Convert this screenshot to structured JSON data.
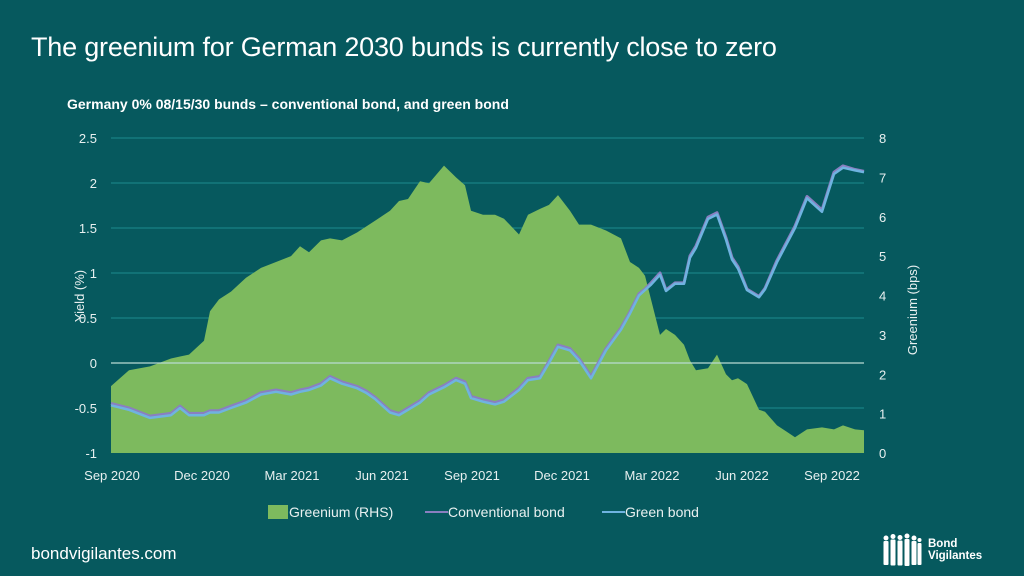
{
  "page": {
    "title": "The greenium for German 2030 bunds is currently close to zero",
    "footer_url": "bondvigilantes.com",
    "logo_line1": "Bond",
    "logo_line2": "Vigilantes"
  },
  "colors": {
    "background": "#06595E",
    "gridline": "#1C8A8E",
    "zero_line": "#B9DCD3",
    "greenium": "#7DBA5E",
    "conventional": "#8A7FC0",
    "green_bond": "#6FB3E0",
    "text": "#E8F0F0"
  },
  "chart_data": {
    "type": "line",
    "title": "Germany 0% 08/15/30 bunds – conventional bond, and green bond",
    "xlabel": "",
    "ylabel": "Yield (%)",
    "y2label": "Greenium (bps)",
    "ylim": [
      -1,
      2.5
    ],
    "y2lim": [
      0,
      8
    ],
    "yticks": [
      "-1",
      "-0.5",
      "0",
      "0.5",
      "1",
      "1.5",
      "2",
      "2.5"
    ],
    "y2ticks": [
      "0",
      "1",
      "2",
      "3",
      "4",
      "5",
      "6",
      "7",
      "8"
    ],
    "xticks": [
      "Sep 2020",
      "Dec 2020",
      "Mar 2021",
      "Jun 2021",
      "Sep 2021",
      "Dec 2021",
      "Mar 2022",
      "Jun 2022",
      "Sep 2022"
    ],
    "x_range_months": [
      0,
      25.1
    ],
    "grid": true,
    "legend": "bottom",
    "legend_entries": [
      "Greenium (RHS)",
      "Conventional bond",
      "Green bond"
    ],
    "x_months_from_sep_2020": [
      0,
      0.6,
      1.3,
      2.0,
      2.3,
      2.6,
      3.1,
      3.3,
      3.6,
      4.0,
      4.5,
      5.0,
      5.5,
      6.0,
      6.3,
      6.6,
      7.0,
      7.3,
      7.7,
      8.2,
      8.5,
      8.8,
      9.3,
      9.6,
      9.9,
      10.3,
      10.6,
      11.1,
      11.5,
      11.8,
      12.0,
      12.4,
      12.8,
      13.1,
      13.6,
      13.9,
      14.3,
      14.6,
      14.9,
      15.3,
      15.6,
      16.0,
      16.5,
      17.0,
      17.3,
      17.6,
      17.8,
      18.0,
      18.3,
      18.5,
      18.8,
      19.1,
      19.3,
      19.5,
      19.9,
      20.2,
      20.5,
      20.7,
      20.9,
      21.2,
      21.6,
      21.8,
      22.2,
      22.5,
      22.8,
      23.2,
      23.7,
      24.1,
      24.4,
      24.8,
      25.1
    ],
    "series": [
      {
        "name": "Greenium (RHS)",
        "axis": "right",
        "style": "area",
        "values": [
          1.7,
          2.1,
          2.2,
          2.4,
          2.45,
          2.5,
          2.85,
          3.6,
          3.9,
          4.1,
          4.45,
          4.7,
          4.85,
          5.0,
          5.25,
          5.1,
          5.4,
          5.45,
          5.4,
          5.6,
          5.75,
          5.9,
          6.15,
          6.4,
          6.45,
          6.9,
          6.85,
          7.3,
          7.0,
          6.8,
          6.15,
          6.05,
          6.05,
          5.95,
          5.55,
          6.05,
          6.2,
          6.3,
          6.55,
          6.15,
          5.8,
          5.8,
          5.65,
          5.45,
          4.85,
          4.7,
          4.5,
          3.9,
          3.0,
          3.15,
          3.0,
          2.75,
          2.35,
          2.1,
          2.15,
          2.5,
          2.0,
          1.85,
          1.9,
          1.75,
          1.1,
          1.05,
          0.7,
          0.55,
          0.4,
          0.6,
          0.65,
          0.6,
          0.7,
          0.6,
          0.58
        ]
      },
      {
        "name": "Conventional bond",
        "axis": "left",
        "style": "line",
        "values": [
          -0.45,
          -0.5,
          -0.59,
          -0.56,
          -0.48,
          -0.56,
          -0.56,
          -0.53,
          -0.53,
          -0.48,
          -0.42,
          -0.33,
          -0.3,
          -0.33,
          -0.3,
          -0.28,
          -0.23,
          -0.15,
          -0.21,
          -0.26,
          -0.31,
          -0.38,
          -0.53,
          -0.56,
          -0.5,
          -0.42,
          -0.33,
          -0.25,
          -0.17,
          -0.21,
          -0.37,
          -0.41,
          -0.44,
          -0.41,
          -0.28,
          -0.17,
          -0.15,
          0.02,
          0.2,
          0.16,
          0.05,
          -0.15,
          0.16,
          0.39,
          0.57,
          0.77,
          0.82,
          0.89,
          1.0,
          0.81,
          0.89,
          0.89,
          1.19,
          1.3,
          1.62,
          1.67,
          1.39,
          1.17,
          1.07,
          0.82,
          0.74,
          0.83,
          1.14,
          1.33,
          1.52,
          1.85,
          1.7,
          2.12,
          2.19,
          2.15,
          2.13
        ]
      },
      {
        "name": "Green bond",
        "axis": "left",
        "style": "line",
        "values": [
          -0.47,
          -0.52,
          -0.61,
          -0.58,
          -0.5,
          -0.58,
          -0.58,
          -0.55,
          -0.55,
          -0.5,
          -0.44,
          -0.35,
          -0.32,
          -0.35,
          -0.32,
          -0.3,
          -0.25,
          -0.17,
          -0.23,
          -0.28,
          -0.33,
          -0.4,
          -0.55,
          -0.58,
          -0.52,
          -0.44,
          -0.35,
          -0.27,
          -0.19,
          -0.23,
          -0.39,
          -0.43,
          -0.46,
          -0.43,
          -0.3,
          -0.19,
          -0.17,
          0.0,
          0.18,
          0.14,
          0.03,
          -0.17,
          0.14,
          0.37,
          0.55,
          0.75,
          0.81,
          0.87,
          0.98,
          0.8,
          0.88,
          0.88,
          1.17,
          1.28,
          1.6,
          1.65,
          1.37,
          1.15,
          1.05,
          0.81,
          0.73,
          0.82,
          1.12,
          1.31,
          1.5,
          1.83,
          1.68,
          2.1,
          2.17,
          2.14,
          2.12
        ]
      }
    ]
  }
}
